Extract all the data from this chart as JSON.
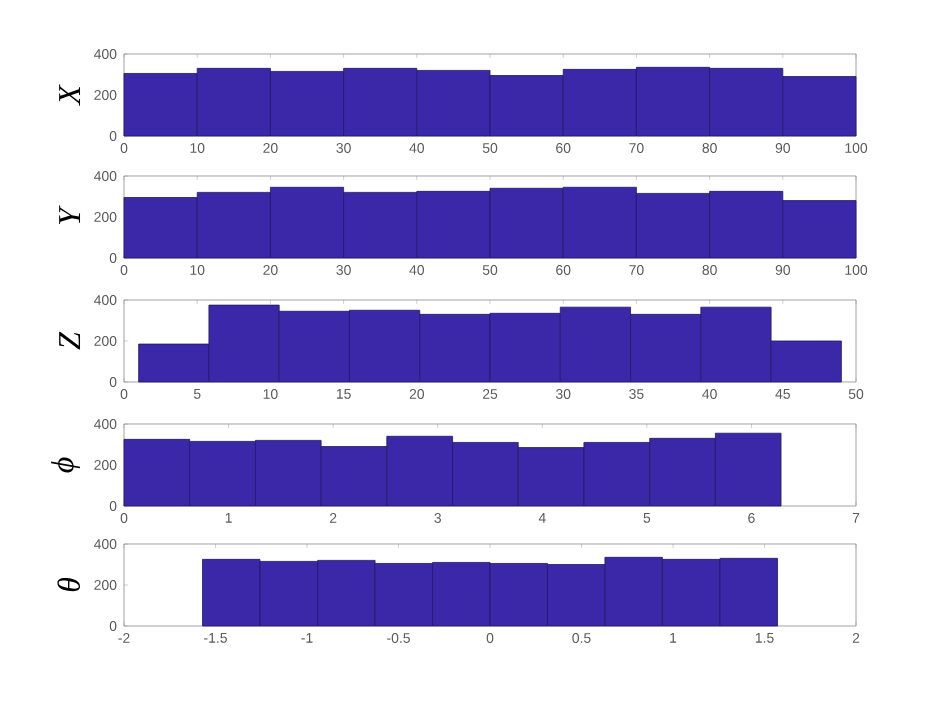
{
  "chart_data": [
    {
      "type": "histogram",
      "ylabel": "X",
      "color": "#3a28a8",
      "bins": [
        0,
        10,
        20,
        30,
        40,
        50,
        60,
        70,
        80,
        90,
        100
      ],
      "values": [
        305,
        330,
        315,
        330,
        320,
        295,
        325,
        335,
        330,
        290
      ],
      "xlim": [
        0,
        100
      ],
      "xticks": [
        0,
        10,
        20,
        30,
        40,
        50,
        60,
        70,
        80,
        90,
        100
      ],
      "ylim": [
        0,
        400
      ],
      "yticks": [
        0,
        200,
        400
      ]
    },
    {
      "type": "histogram",
      "ylabel": "Y",
      "color": "#3a28a8",
      "bins": [
        0,
        10,
        20,
        30,
        40,
        50,
        60,
        70,
        80,
        90,
        100
      ],
      "values": [
        295,
        320,
        345,
        320,
        325,
        340,
        345,
        315,
        325,
        280
      ],
      "xlim": [
        0,
        100
      ],
      "xticks": [
        0,
        10,
        20,
        30,
        40,
        50,
        60,
        70,
        80,
        90,
        100
      ],
      "ylim": [
        0,
        400
      ],
      "yticks": [
        0,
        200,
        400
      ]
    },
    {
      "type": "histogram",
      "ylabel": "Z",
      "color": "#3a28a8",
      "bins": [
        1,
        5.8,
        10.6,
        15.4,
        20.2,
        25,
        29.8,
        34.6,
        39.4,
        44.2,
        49
      ],
      "values": [
        185,
        375,
        345,
        350,
        330,
        335,
        365,
        330,
        365,
        200
      ],
      "xlim": [
        0,
        50
      ],
      "xticks": [
        0,
        5,
        10,
        15,
        20,
        25,
        30,
        35,
        40,
        45,
        50
      ],
      "ylim": [
        0,
        400
      ],
      "yticks": [
        0,
        200,
        400
      ]
    },
    {
      "type": "histogram",
      "ylabel": "ϕ",
      "color": "#3a28a8",
      "bins": [
        0,
        0.628,
        1.257,
        1.885,
        2.513,
        3.142,
        3.77,
        4.398,
        5.027,
        5.655,
        6.283
      ],
      "values": [
        325,
        315,
        320,
        290,
        340,
        310,
        285,
        310,
        330,
        355
      ],
      "xlim": [
        0,
        7
      ],
      "xticks": [
        0,
        1,
        2,
        3,
        4,
        5,
        6,
        7
      ],
      "ylim": [
        0,
        400
      ],
      "yticks": [
        0,
        200,
        400
      ]
    },
    {
      "type": "histogram",
      "ylabel": "θ",
      "color": "#3a28a8",
      "bins": [
        -1.571,
        -1.257,
        -0.942,
        -0.628,
        -0.314,
        0,
        0.314,
        0.628,
        0.942,
        1.257,
        1.571
      ],
      "values": [
        325,
        315,
        320,
        305,
        310,
        305,
        300,
        335,
        325,
        330
      ],
      "xlim": [
        -2,
        2
      ],
      "xticks": [
        -2,
        -1.5,
        -1,
        -0.5,
        0,
        0.5,
        1,
        1.5,
        2
      ],
      "ylim": [
        0,
        400
      ],
      "yticks": [
        0,
        200,
        400
      ]
    }
  ]
}
